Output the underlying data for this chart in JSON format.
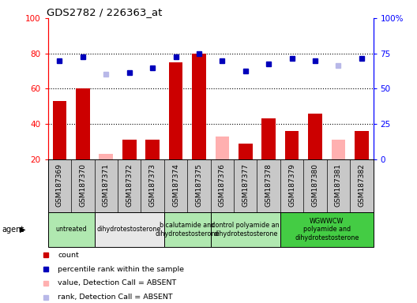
{
  "title": "GDS2782 / 226363_at",
  "samples": [
    "GSM187369",
    "GSM187370",
    "GSM187371",
    "GSM187372",
    "GSM187373",
    "GSM187374",
    "GSM187375",
    "GSM187376",
    "GSM187377",
    "GSM187378",
    "GSM187379",
    "GSM187380",
    "GSM187381",
    "GSM187382"
  ],
  "count_values": [
    53,
    60,
    null,
    31,
    31,
    75,
    80,
    null,
    29,
    43,
    36,
    46,
    null,
    36
  ],
  "count_absent": [
    null,
    null,
    23,
    null,
    null,
    null,
    null,
    33,
    null,
    null,
    null,
    null,
    31,
    null
  ],
  "rank_values": [
    76,
    78,
    null,
    69,
    72,
    78,
    80,
    76,
    70,
    74,
    77,
    76,
    null,
    77
  ],
  "rank_absent": [
    null,
    null,
    68,
    null,
    null,
    null,
    null,
    null,
    null,
    null,
    null,
    null,
    73,
    null
  ],
  "agents": [
    {
      "label": "untreated",
      "samples": [
        0,
        1
      ],
      "color": "#b0e8b0"
    },
    {
      "label": "dihydrotestosterone",
      "samples": [
        2,
        3,
        4
      ],
      "color": "#e8e8e8"
    },
    {
      "label": "bicalutamide and\ndihydrotestosterone",
      "samples": [
        5,
        6
      ],
      "color": "#b0e8b0"
    },
    {
      "label": "control polyamide an\ndihydrotestosterone",
      "samples": [
        7,
        8,
        9
      ],
      "color": "#b0e8b0"
    },
    {
      "label": "WGWWCW\npolyamide and\ndihydrotestosterone",
      "samples": [
        10,
        11,
        12,
        13
      ],
      "color": "#44cc44"
    }
  ],
  "bar_color_red": "#cc0000",
  "bar_color_absent": "#ffb0b0",
  "dot_color_blue": "#0000bb",
  "dot_color_absent": "#b8b8e8",
  "bg_color_sample": "#c8c8c8",
  "ylim_left": [
    20,
    100
  ],
  "ylim_right": [
    0,
    100
  ],
  "yticks_left": [
    20,
    40,
    60,
    80,
    100
  ],
  "yticks_right": [
    0,
    25,
    50,
    75,
    100
  ],
  "yticklabels_right": [
    "0",
    "25",
    "50",
    "75",
    "100%"
  ],
  "grid_values": [
    40,
    60,
    80
  ],
  "legend_items": [
    {
      "label": "count",
      "color": "#cc0000"
    },
    {
      "label": "percentile rank within the sample",
      "color": "#0000bb"
    },
    {
      "label": "value, Detection Call = ABSENT",
      "color": "#ffb0b0"
    },
    {
      "label": "rank, Detection Call = ABSENT",
      "color": "#b8b8e8"
    }
  ]
}
